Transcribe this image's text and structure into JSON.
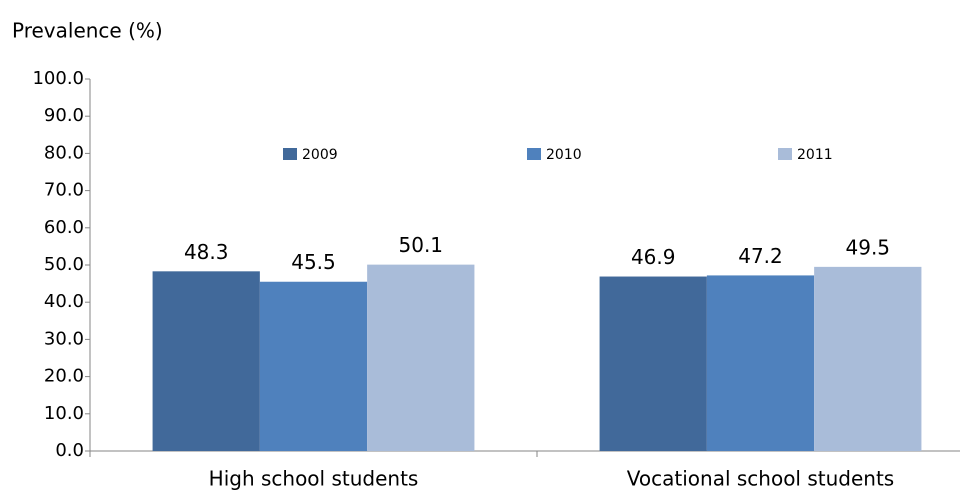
{
  "chart_data": {
    "type": "bar",
    "y_label": "Prevalence (%)",
    "categories": [
      "High school students",
      "Vocational school students"
    ],
    "series": [
      {
        "name": "2009",
        "color": "#41699a",
        "values": [
          48.3,
          46.9
        ]
      },
      {
        "name": "2010",
        "color": "#4f81bd",
        "values": [
          45.5,
          47.2
        ]
      },
      {
        "name": "2011",
        "color": "#a9bcd9",
        "values": [
          50.1,
          49.5
        ]
      }
    ],
    "ylim": [
      0,
      100
    ],
    "yticks": [
      {
        "value": 0,
        "label": "0.0"
      },
      {
        "value": 10,
        "label": "10.0"
      },
      {
        "value": 20,
        "label": "20.0"
      },
      {
        "value": 30,
        "label": "30.0"
      },
      {
        "value": 40,
        "label": "40.0"
      },
      {
        "value": 50,
        "label": "50.0"
      },
      {
        "value": 60,
        "label": "60.0"
      },
      {
        "value": 70,
        "label": "70.0"
      },
      {
        "value": 80,
        "label": "80.0"
      },
      {
        "value": 90,
        "label": "90.0"
      },
      {
        "value": 100,
        "label": "100.0"
      }
    ],
    "grid": false,
    "legend": "top"
  }
}
